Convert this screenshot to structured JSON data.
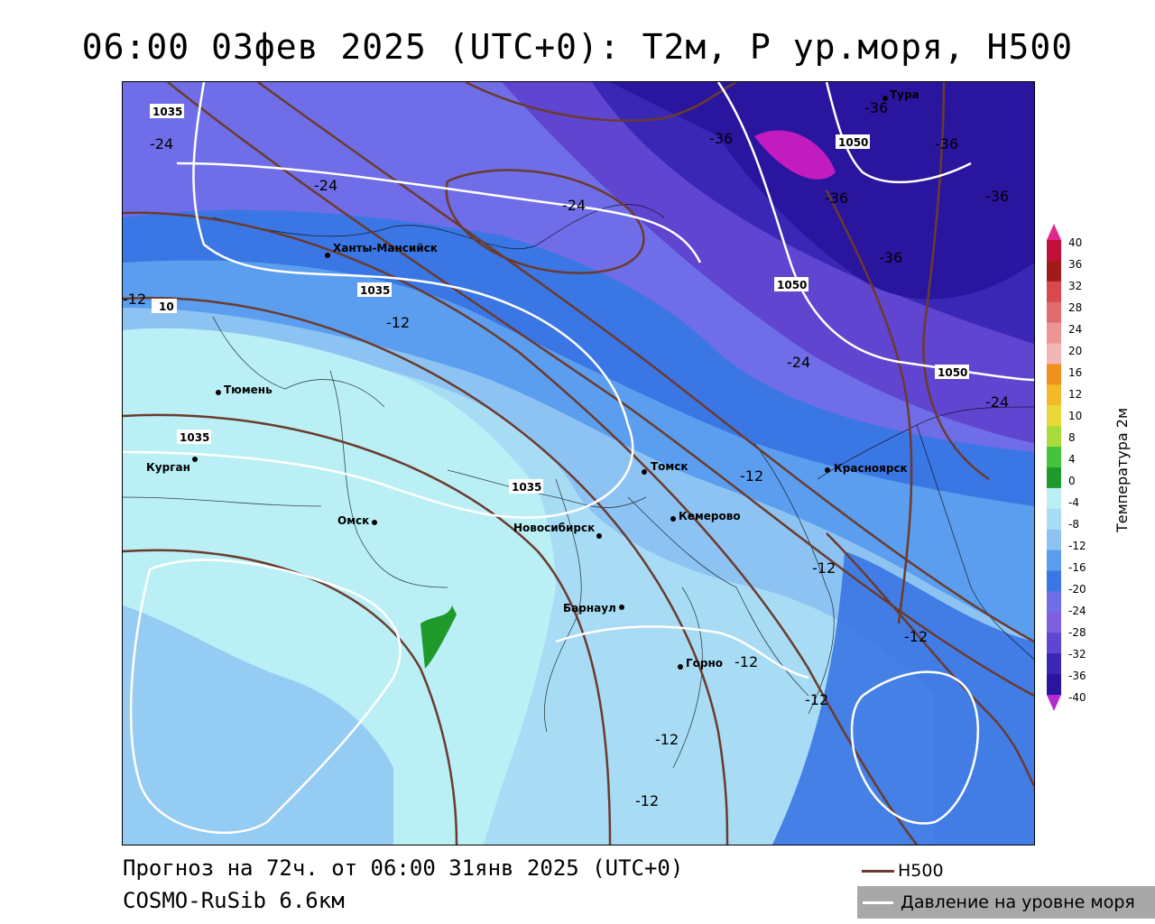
{
  "title": "06:00 03фев 2025 (UTC+0): T2м, P ур.моря, H500",
  "footer": {
    "forecast": "Прогноз на 72ч. от 06:00 31янв 2025 (UTC+0)",
    "model": "COSMO-RuSib 6.6км"
  },
  "legend": {
    "h500": "H500",
    "pressure": "Давление на уровне моря",
    "h500_color": "#6b3b2e",
    "pressure_color": "#ffffff"
  },
  "colorbar": {
    "title": "Температура 2м",
    "ticks": [
      "40",
      "36",
      "32",
      "28",
      "24",
      "20",
      "16",
      "12",
      "10",
      "8",
      "4",
      "0",
      "-4",
      "-8",
      "-12",
      "-16",
      "-20",
      "-24",
      "-28",
      "-32",
      "-36",
      "-40"
    ],
    "colors": [
      "#c40f3a",
      "#a31a1a",
      "#d8484c",
      "#e26c6c",
      "#ed9595",
      "#f2b6b6",
      "#f0901c",
      "#f4b92a",
      "#e8d838",
      "#a9dc3a",
      "#44c43c",
      "#1f9a2a",
      "#b9eff5",
      "#a8dcf5",
      "#8cc3f2",
      "#5b9ef0",
      "#3a76e4",
      "#6f6ee8",
      "#7d5fe0",
      "#5f45d0",
      "#3a27b6",
      "#2a159e"
    ],
    "arrow_top": "#e3278c",
    "arrow_bottom": "#b52ad0"
  },
  "cities": [
    {
      "name": "Ханты-Мансийск"
    },
    {
      "name": "Тюмень"
    },
    {
      "name": "Курган"
    },
    {
      "name": "Омск"
    },
    {
      "name": "Новосибирск"
    },
    {
      "name": "Томск"
    },
    {
      "name": "Кемерово"
    },
    {
      "name": "Барнаул"
    },
    {
      "name": "Горно"
    },
    {
      "name": "Красноярск"
    },
    {
      "name": "Тура"
    }
  ],
  "isotherm_labels": [
    "-24",
    "-24",
    "-24",
    "-12",
    "-12",
    "-12",
    "-12",
    "-12",
    "-12",
    "-12",
    "-12",
    "-12",
    "-36",
    "-36",
    "-36",
    "-36",
    "-36",
    "-36",
    "-24",
    "-24"
  ],
  "pressure_labels": [
    "1035",
    "1035",
    "1035",
    "1035",
    "1050",
    "1050",
    "1050",
    "10"
  ]
}
